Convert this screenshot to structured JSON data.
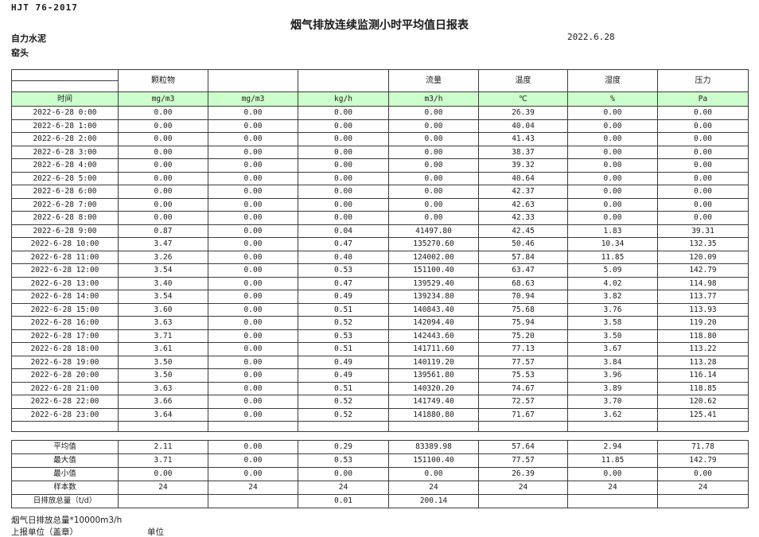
{
  "header": {
    "standard": "HJT 76-2017",
    "title": "烟气排放连续监测小时平均值日报表",
    "company": "自力水泥",
    "site": "窑头",
    "date": "2022.6.28"
  },
  "colors": {
    "units_row_bg": "#ccffcc",
    "grid_line": "#3b3b3b"
  },
  "table": {
    "group_headers": [
      "",
      "颗粒物",
      "",
      "",
      "流量",
      "温度",
      "湿度",
      "压力"
    ],
    "units": [
      "时间",
      "mg/m3",
      "mg/m3",
      "kg/h",
      "m3/h",
      "℃",
      "%",
      "Pa"
    ],
    "rows": [
      {
        "time": "2022-6-28 0:00",
        "values": [
          "0.00",
          "0.00",
          "0.00",
          "0.00",
          "26.39",
          "0.00",
          "0.00"
        ]
      },
      {
        "time": "2022-6-28 1:00",
        "values": [
          "0.00",
          "0.00",
          "0.00",
          "0.00",
          "40.04",
          "0.00",
          "0.00"
        ]
      },
      {
        "time": "2022-6-28 2:00",
        "values": [
          "0.00",
          "0.00",
          "0.00",
          "0.00",
          "41.43",
          "0.00",
          "0.00"
        ]
      },
      {
        "time": "2022-6-28 3:00",
        "values": [
          "0.00",
          "0.00",
          "0.00",
          "0.00",
          "38.37",
          "0.00",
          "0.00"
        ]
      },
      {
        "time": "2022-6-28 4:00",
        "values": [
          "0.00",
          "0.00",
          "0.00",
          "0.00",
          "39.32",
          "0.00",
          "0.00"
        ]
      },
      {
        "time": "2022-6-28 5:00",
        "values": [
          "0.00",
          "0.00",
          "0.00",
          "0.00",
          "40.64",
          "0.00",
          "0.00"
        ]
      },
      {
        "time": "2022-6-28 6:00",
        "values": [
          "0.00",
          "0.00",
          "0.00",
          "0.00",
          "42.37",
          "0.00",
          "0.00"
        ]
      },
      {
        "time": "2022-6-28 7:00",
        "values": [
          "0.00",
          "0.00",
          "0.00",
          "0.00",
          "42.63",
          "0.00",
          "0.00"
        ]
      },
      {
        "time": "2022-6-28 8:00",
        "values": [
          "0.00",
          "0.00",
          "0.00",
          "0.00",
          "42.33",
          "0.00",
          "0.00"
        ]
      },
      {
        "time": "2022-6-28 9:00",
        "values": [
          "0.87",
          "0.00",
          "0.04",
          "41497.80",
          "42.45",
          "1.83",
          "39.31"
        ]
      },
      {
        "time": "2022-6-28 10:00",
        "values": [
          "3.47",
          "0.00",
          "0.47",
          "135270.60",
          "50.46",
          "10.34",
          "132.35"
        ]
      },
      {
        "time": "2022-6-28 11:00",
        "values": [
          "3.26",
          "0.00",
          "0.40",
          "124002.00",
          "57.84",
          "11.85",
          "120.09"
        ]
      },
      {
        "time": "2022-6-28 12:00",
        "values": [
          "3.54",
          "0.00",
          "0.53",
          "151100.40",
          "63.47",
          "5.09",
          "142.79"
        ]
      },
      {
        "time": "2022-6-28 13:00",
        "values": [
          "3.40",
          "0.00",
          "0.47",
          "139529.40",
          "68.63",
          "4.02",
          "114.98"
        ]
      },
      {
        "time": "2022-6-28 14:00",
        "values": [
          "3.54",
          "0.00",
          "0.49",
          "139234.80",
          "70.94",
          "3.82",
          "113.77"
        ]
      },
      {
        "time": "2022-6-28 15:00",
        "values": [
          "3.60",
          "0.00",
          "0.51",
          "140843.40",
          "75.68",
          "3.76",
          "113.93"
        ]
      },
      {
        "time": "2022-6-28 16:00",
        "values": [
          "3.63",
          "0.00",
          "0.52",
          "142094.40",
          "75.94",
          "3.58",
          "119.20"
        ]
      },
      {
        "time": "2022-6-28 17:00",
        "values": [
          "3.71",
          "0.00",
          "0.53",
          "142443.60",
          "75.20",
          "3.50",
          "118.80"
        ]
      },
      {
        "time": "2022-6-28 18:00",
        "values": [
          "3.61",
          "0.00",
          "0.51",
          "141711.60",
          "77.13",
          "3.67",
          "113.22"
        ]
      },
      {
        "time": "2022-6-28 19:00",
        "values": [
          "3.50",
          "0.00",
          "0.49",
          "140119.20",
          "77.57",
          "3.84",
          "113.28"
        ]
      },
      {
        "time": "2022-6-28 20:00",
        "values": [
          "3.50",
          "0.00",
          "0.49",
          "139561.80",
          "75.53",
          "3.96",
          "116.14"
        ]
      },
      {
        "time": "2022-6-28 21:00",
        "values": [
          "3.63",
          "0.00",
          "0.51",
          "140320.20",
          "74.67",
          "3.89",
          "118.85"
        ]
      },
      {
        "time": "2022-6-28 22:00",
        "values": [
          "3.66",
          "0.00",
          "0.52",
          "141749.40",
          "72.57",
          "3.70",
          "120.62"
        ]
      },
      {
        "time": "2022-6-28 23:00",
        "values": [
          "3.64",
          "0.00",
          "0.52",
          "141880.80",
          "71.67",
          "3.62",
          "125.41"
        ]
      }
    ],
    "summary": [
      {
        "label": "平均值",
        "values": [
          "2.11",
          "0.00",
          "0.29",
          "83389.98",
          "57.64",
          "2.94",
          "71.78"
        ]
      },
      {
        "label": "最大值",
        "values": [
          "3.71",
          "0.00",
          "0.53",
          "151100.40",
          "77.57",
          "11.85",
          "142.79"
        ]
      },
      {
        "label": "最小值",
        "values": [
          "0.00",
          "0.00",
          "0.00",
          "0.00",
          "26.39",
          "0.00",
          "0.00"
        ]
      },
      {
        "label": "样本数",
        "values": [
          "24",
          "24",
          "24",
          "24",
          "24",
          "24",
          "24"
        ]
      },
      {
        "label": "日排放总量（t/d）",
        "values": [
          "",
          "",
          "0.01",
          "200.14",
          "",
          "",
          ""
        ]
      }
    ]
  },
  "footer": {
    "note": "烟气日排放总量*10000m3/h",
    "report_unit": "上报单位（盖章）",
    "unit": "单位"
  }
}
